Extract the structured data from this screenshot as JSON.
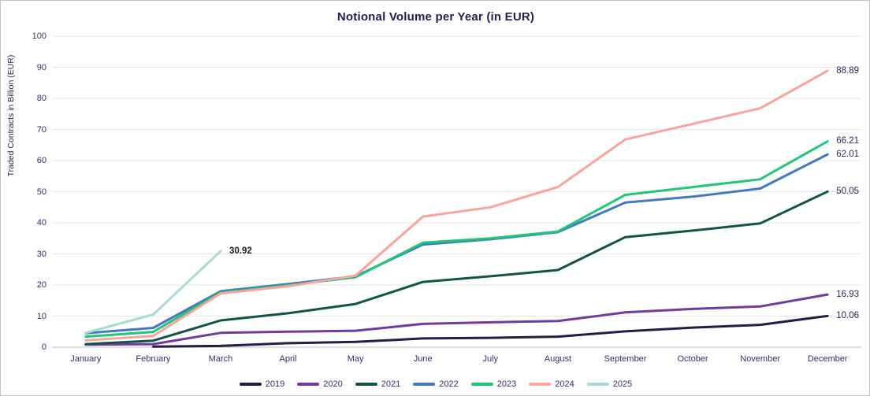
{
  "chart_data": {
    "type": "line",
    "title": "Notional Volume per Year (in EUR)",
    "ylabel": "Traded Contracts in Billion (EUR)",
    "xlabel": "",
    "categories": [
      "January",
      "February",
      "March",
      "April",
      "May",
      "June",
      "July",
      "August",
      "September",
      "October",
      "November",
      "December"
    ],
    "ylim": [
      0,
      100
    ],
    "ytick_labels": [
      "0",
      "10",
      "20",
      "30",
      "40",
      "50",
      "60",
      "70",
      "80",
      "90",
      "100"
    ],
    "grid": true,
    "legend_position": "bottom",
    "colors": {
      "text": "#332e66",
      "title": "#221c51",
      "gridline": "#e5e5e5",
      "axis_line": "#d2d2d2"
    },
    "series": [
      {
        "name": "2019",
        "color": "#221c46",
        "end_label": "10.06",
        "end_label_bold": false,
        "values": [
          null,
          0.2,
          0.4,
          1.3,
          1.7,
          2.8,
          3.0,
          3.4,
          5.1,
          6.3,
          7.2,
          10.06
        ]
      },
      {
        "name": "2020",
        "color": "#7139a1",
        "end_label": "16.93",
        "end_label_bold": false,
        "values": [
          0.8,
          1.0,
          4.6,
          5.0,
          5.3,
          7.5,
          8.0,
          8.4,
          11.2,
          12.3,
          13.1,
          16.93
        ]
      },
      {
        "name": "2021",
        "color": "#0f5349",
        "end_label": "50.05",
        "end_label_bold": false,
        "values": [
          1.0,
          2.1,
          8.6,
          10.9,
          13.9,
          21.0,
          22.8,
          24.8,
          35.4,
          37.5,
          39.8,
          50.05
        ]
      },
      {
        "name": "2022",
        "color": "#4379c4",
        "end_label": "62.01",
        "end_label_bold": false,
        "values": [
          4.5,
          6.2,
          18.0,
          20.3,
          22.8,
          33.0,
          34.7,
          37.0,
          46.5,
          48.4,
          51.0,
          62.01
        ]
      },
      {
        "name": "2023",
        "color": "#20c675",
        "end_label": "66.21",
        "end_label_bold": false,
        "values": [
          3.4,
          4.9,
          17.6,
          19.9,
          22.5,
          33.6,
          35.0,
          37.2,
          49.0,
          51.5,
          54.0,
          66.21
        ]
      },
      {
        "name": "2024",
        "color": "#fba39a",
        "end_label": "88.89",
        "end_label_bold": false,
        "values": [
          2.2,
          3.6,
          17.3,
          19.6,
          23.0,
          42.0,
          45.0,
          51.5,
          66.8,
          71.8,
          76.8,
          88.89
        ]
      },
      {
        "name": "2025",
        "color": "#a6dbd6",
        "end_label": "30.92",
        "end_label_bold": true,
        "values": [
          4.6,
          10.5,
          30.92,
          null,
          null,
          null,
          null,
          null,
          null,
          null,
          null,
          null
        ]
      }
    ]
  }
}
